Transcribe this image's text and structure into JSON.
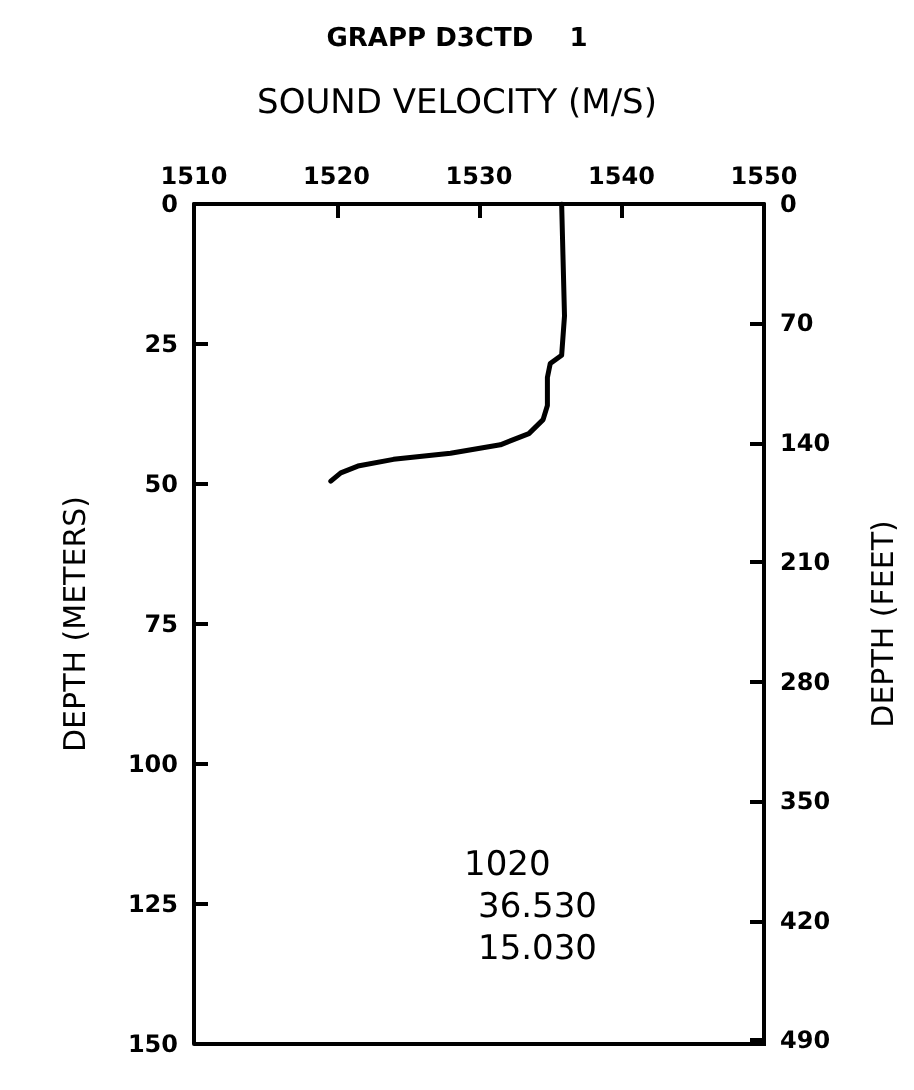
{
  "chart_data": {
    "type": "line",
    "title": "GRAPP D3CTD    1",
    "subtitle": "SOUND VELOCITY (M/S)",
    "ylabel": "DEPTH (METERS)",
    "y2label": "DEPTH (FEET)",
    "series": [
      {
        "color": "#000000",
        "x": [
          1535.8,
          1535.9,
          1536.0,
          1535.8,
          1535.0,
          1534.8,
          1534.8,
          1534.5,
          1533.5,
          1531.5,
          1528,
          1524,
          1521.5,
          1520.3,
          1519.6
        ],
        "values": [
          0,
          10,
          20,
          27,
          28.5,
          31,
          36,
          38.5,
          41,
          43,
          44.5,
          45.6,
          46.8,
          48,
          49.5
        ]
      }
    ],
    "xlim": [
      1510,
      1550
    ],
    "xticks": [
      1510,
      1520,
      1530,
      1540,
      1550
    ],
    "ylim": [
      150,
      0
    ],
    "yticks": [
      0,
      25,
      50,
      75,
      100,
      125,
      150
    ],
    "y2lim": [
      492.1,
      0
    ],
    "y2ticks": [
      0,
      70,
      140,
      210,
      280,
      350,
      420,
      490
    ],
    "annotations": [
      "1020",
      "36.530",
      "15.030"
    ],
    "grid": false,
    "marker": "none",
    "line_style": "solid"
  }
}
